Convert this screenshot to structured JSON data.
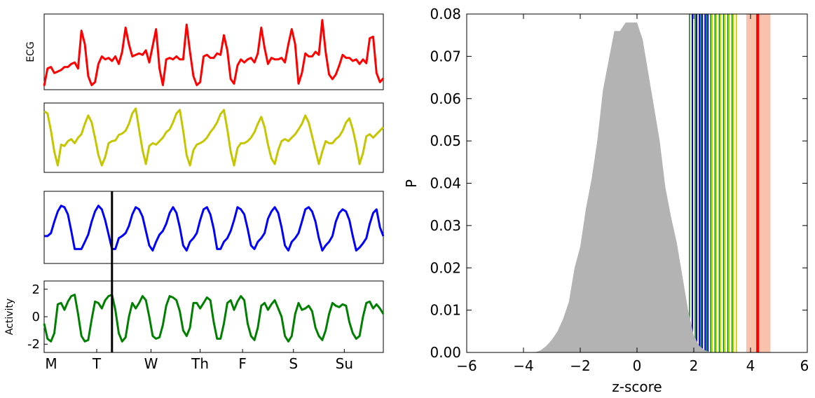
{
  "chart_data": [
    {
      "type": "line",
      "panel": "ecg",
      "ylabel": "ECG",
      "color": "#ff0000",
      "x": [
        0,
        0.01,
        0.02,
        0.03,
        0.04,
        0.05,
        0.06,
        0.07,
        0.08,
        0.09,
        0.1,
        0.11,
        0.12,
        0.13,
        0.14,
        0.15,
        0.16,
        0.17,
        0.18,
        0.19,
        0.2,
        0.21,
        0.22,
        0.23,
        0.24,
        0.25,
        0.26,
        0.27,
        0.28,
        0.29,
        0.3,
        0.31,
        0.32,
        0.33,
        0.34,
        0.35,
        0.36,
        0.37,
        0.38,
        0.39,
        0.4,
        0.41,
        0.42,
        0.43,
        0.44,
        0.45,
        0.46,
        0.47,
        0.48,
        0.49,
        0.5,
        0.51,
        0.52,
        0.53,
        0.54,
        0.55,
        0.56,
        0.57,
        0.58,
        0.59,
        0.6,
        0.61,
        0.62,
        0.63,
        0.64,
        0.65,
        0.66,
        0.67,
        0.68,
        0.69,
        0.7,
        0.71,
        0.72,
        0.73,
        0.74,
        0.75,
        0.76,
        0.77,
        0.78,
        0.79,
        0.8,
        0.81,
        0.82,
        0.83,
        0.84,
        0.85,
        0.86,
        0.87,
        0.88,
        0.89,
        0.9,
        0.91,
        0.92,
        0.93,
        0.94,
        0.95,
        0.96,
        0.97,
        0.98,
        0.99,
        1
      ],
      "y": [
        0.05,
        0.28,
        0.3,
        0.22,
        0.24,
        0.26,
        0.3,
        0.3,
        0.34,
        0.36,
        0.28,
        0.78,
        0.6,
        0.18,
        0.06,
        0.1,
        0.34,
        0.44,
        0.4,
        0.42,
        0.38,
        0.44,
        0.34,
        0.5,
        0.82,
        0.6,
        0.44,
        0.46,
        0.48,
        0.46,
        0.52,
        0.36,
        0.58,
        0.8,
        0.28,
        0.06,
        0.4,
        0.42,
        0.4,
        0.44,
        0.4,
        0.4,
        0.86,
        0.5,
        0.18,
        0.06,
        0.1,
        0.44,
        0.46,
        0.42,
        0.42,
        0.48,
        0.46,
        0.72,
        0.52,
        0.14,
        0.08,
        0.32,
        0.4,
        0.36,
        0.4,
        0.42,
        0.36,
        0.48,
        0.82,
        0.55,
        0.34,
        0.42,
        0.4,
        0.4,
        0.42,
        0.36,
        0.6,
        0.8,
        0.6,
        0.08,
        0.22,
        0.48,
        0.44,
        0.44,
        0.5,
        0.46,
        0.92,
        0.5,
        0.2,
        0.14,
        0.2,
        0.32,
        0.46,
        0.42,
        0.42,
        0.38,
        0.4,
        0.34,
        0.4,
        0.35,
        0.68,
        0.7,
        0.22,
        0.1,
        0.15
      ]
    },
    {
      "type": "line",
      "panel": "yellow",
      "color": "#c6c600",
      "x": [
        0,
        0.01,
        0.02,
        0.03,
        0.04,
        0.05,
        0.06,
        0.07,
        0.08,
        0.09,
        0.1,
        0.11,
        0.12,
        0.13,
        0.14,
        0.15,
        0.16,
        0.17,
        0.18,
        0.19,
        0.2,
        0.21,
        0.22,
        0.23,
        0.24,
        0.25,
        0.26,
        0.27,
        0.28,
        0.29,
        0.3,
        0.31,
        0.32,
        0.33,
        0.34,
        0.35,
        0.36,
        0.37,
        0.38,
        0.39,
        0.4,
        0.41,
        0.42,
        0.43,
        0.44,
        0.45,
        0.46,
        0.47,
        0.48,
        0.49,
        0.5,
        0.51,
        0.52,
        0.53,
        0.54,
        0.55,
        0.56,
        0.57,
        0.58,
        0.59,
        0.6,
        0.61,
        0.62,
        0.63,
        0.64,
        0.65,
        0.66,
        0.67,
        0.68,
        0.69,
        0.7,
        0.71,
        0.72,
        0.73,
        0.74,
        0.75,
        0.76,
        0.77,
        0.78,
        0.79,
        0.8,
        0.81,
        0.82,
        0.83,
        0.84,
        0.85,
        0.86,
        0.87,
        0.88,
        0.89,
        0.9,
        0.91,
        0.92,
        0.93,
        0.94,
        0.95,
        0.96,
        0.97,
        0.98,
        0.99,
        1
      ],
      "y": [
        0.88,
        0.85,
        0.6,
        0.3,
        0.1,
        0.4,
        0.38,
        0.45,
        0.48,
        0.42,
        0.5,
        0.55,
        0.7,
        0.82,
        0.72,
        0.5,
        0.25,
        0.1,
        0.22,
        0.42,
        0.45,
        0.46,
        0.54,
        0.56,
        0.6,
        0.7,
        0.85,
        0.92,
        0.62,
        0.32,
        0.12,
        0.38,
        0.42,
        0.4,
        0.45,
        0.5,
        0.58,
        0.62,
        0.72,
        0.85,
        0.9,
        0.6,
        0.25,
        0.1,
        0.32,
        0.4,
        0.42,
        0.45,
        0.5,
        0.58,
        0.64,
        0.72,
        0.84,
        0.9,
        0.62,
        0.3,
        0.1,
        0.35,
        0.42,
        0.42,
        0.45,
        0.5,
        0.58,
        0.7,
        0.8,
        0.65,
        0.4,
        0.2,
        0.12,
        0.32,
        0.45,
        0.48,
        0.45,
        0.5,
        0.55,
        0.62,
        0.7,
        0.82,
        0.72,
        0.52,
        0.32,
        0.12,
        0.3,
        0.45,
        0.42,
        0.42,
        0.48,
        0.52,
        0.6,
        0.72,
        0.78,
        0.62,
        0.4,
        0.12,
        0.28,
        0.52,
        0.55,
        0.5,
        0.55,
        0.6,
        0.65
      ]
    },
    {
      "type": "line",
      "panel": "blue",
      "color": "#0000ff",
      "x": [
        0,
        0.01,
        0.02,
        0.03,
        0.04,
        0.05,
        0.06,
        0.07,
        0.08,
        0.09,
        0.1,
        0.11,
        0.12,
        0.13,
        0.14,
        0.15,
        0.16,
        0.17,
        0.18,
        0.19,
        0.2,
        0.21,
        0.22,
        0.23,
        0.24,
        0.25,
        0.26,
        0.27,
        0.28,
        0.29,
        0.3,
        0.31,
        0.32,
        0.33,
        0.34,
        0.35,
        0.36,
        0.37,
        0.38,
        0.39,
        0.4,
        0.41,
        0.42,
        0.43,
        0.44,
        0.45,
        0.46,
        0.47,
        0.48,
        0.49,
        0.5,
        0.51,
        0.52,
        0.53,
        0.54,
        0.55,
        0.56,
        0.57,
        0.58,
        0.59,
        0.6,
        0.61,
        0.62,
        0.63,
        0.64,
        0.65,
        0.66,
        0.67,
        0.68,
        0.69,
        0.7,
        0.71,
        0.72,
        0.73,
        0.74,
        0.75,
        0.76,
        0.77,
        0.78,
        0.79,
        0.8,
        0.81,
        0.82,
        0.83,
        0.84,
        0.85,
        0.86,
        0.87,
        0.88,
        0.89,
        0.9,
        0.91,
        0.92,
        0.93,
        0.94,
        0.95,
        0.96,
        0.97,
        0.98,
        0.99,
        1
      ],
      "y": [
        0.38,
        0.38,
        0.42,
        0.58,
        0.72,
        0.8,
        0.78,
        0.68,
        0.45,
        0.2,
        0.2,
        0.2,
        0.3,
        0.4,
        0.58,
        0.72,
        0.8,
        0.75,
        0.6,
        0.4,
        0.2,
        0.2,
        0.35,
        0.38,
        0.42,
        0.52,
        0.68,
        0.78,
        0.75,
        0.65,
        0.45,
        0.25,
        0.18,
        0.3,
        0.4,
        0.45,
        0.55,
        0.7,
        0.78,
        0.7,
        0.5,
        0.25,
        0.18,
        0.3,
        0.35,
        0.42,
        0.6,
        0.75,
        0.78,
        0.68,
        0.48,
        0.2,
        0.2,
        0.3,
        0.35,
        0.45,
        0.6,
        0.78,
        0.75,
        0.68,
        0.48,
        0.25,
        0.2,
        0.3,
        0.35,
        0.42,
        0.62,
        0.72,
        0.78,
        0.7,
        0.5,
        0.25,
        0.18,
        0.3,
        0.35,
        0.42,
        0.58,
        0.75,
        0.78,
        0.72,
        0.58,
        0.35,
        0.18,
        0.25,
        0.3,
        0.38,
        0.58,
        0.7,
        0.75,
        0.72,
        0.6,
        0.38,
        0.18,
        0.22,
        0.28,
        0.35,
        0.55,
        0.7,
        0.75,
        0.5,
        0.38
      ]
    },
    {
      "type": "line",
      "panel": "activity",
      "ylabel": "Activity",
      "color": "#008000",
      "ylim": [
        -2.6,
        2.6
      ],
      "yticks": [
        "2",
        "0",
        "-2"
      ],
      "yticks_values": [
        2,
        0,
        -2
      ],
      "xtick_labels": [
        "M",
        "T",
        "W",
        "Th",
        "F",
        "S",
        "Su"
      ],
      "xtick_positions": [
        0,
        0.155,
        0.315,
        0.46,
        0.585,
        0.735,
        0.885
      ],
      "vline_x": 0.2,
      "x": [
        0,
        0.01,
        0.02,
        0.03,
        0.04,
        0.05,
        0.06,
        0.07,
        0.08,
        0.09,
        0.1,
        0.11,
        0.12,
        0.13,
        0.14,
        0.15,
        0.16,
        0.17,
        0.18,
        0.19,
        0.2,
        0.21,
        0.22,
        0.23,
        0.24,
        0.25,
        0.26,
        0.27,
        0.28,
        0.29,
        0.3,
        0.31,
        0.32,
        0.33,
        0.34,
        0.35,
        0.36,
        0.37,
        0.38,
        0.39,
        0.4,
        0.41,
        0.42,
        0.43,
        0.44,
        0.45,
        0.46,
        0.47,
        0.48,
        0.49,
        0.5,
        0.51,
        0.52,
        0.53,
        0.54,
        0.55,
        0.56,
        0.57,
        0.58,
        0.59,
        0.6,
        0.61,
        0.62,
        0.63,
        0.64,
        0.65,
        0.66,
        0.67,
        0.68,
        0.69,
        0.7,
        0.71,
        0.72,
        0.73,
        0.74,
        0.75,
        0.76,
        0.77,
        0.78,
        0.79,
        0.8,
        0.81,
        0.82,
        0.83,
        0.84,
        0.85,
        0.86,
        0.87,
        0.88,
        0.89,
        0.9,
        0.91,
        0.92,
        0.93,
        0.94,
        0.95,
        0.96,
        0.97,
        0.98,
        0.99,
        1
      ],
      "y": [
        -0.5,
        -1.6,
        -1.8,
        -1.2,
        0.9,
        1.0,
        0.5,
        1.1,
        1.5,
        1.6,
        0.2,
        -1.4,
        -1.8,
        -1.7,
        -0.2,
        1.1,
        1.0,
        0.6,
        1.2,
        1.5,
        1.6,
        0.5,
        -1.2,
        -1.8,
        -1.5,
        0.0,
        1.0,
        0.6,
        1.0,
        1.5,
        1.2,
        0.0,
        -1.4,
        -1.6,
        -1.5,
        -0.6,
        0.8,
        1.5,
        1.4,
        1.2,
        0.4,
        -1.0,
        -1.4,
        -0.8,
        1.0,
        1.0,
        0.6,
        1.0,
        1.4,
        1.2,
        -0.4,
        -1.6,
        -1.6,
        -0.5,
        1.0,
        1.2,
        0.5,
        1.1,
        1.5,
        1.2,
        -0.5,
        -1.4,
        -1.7,
        -0.8,
        0.8,
        1.0,
        0.5,
        0.9,
        1.2,
        0.6,
        0.0,
        -1.4,
        -1.8,
        -1.4,
        0.2,
        1.0,
        0.5,
        0.6,
        0.8,
        0.4,
        -0.8,
        -1.4,
        -1.7,
        -1.0,
        0.2,
        1.0,
        0.8,
        0.7,
        0.9,
        0.8,
        -0.4,
        -1.2,
        -1.6,
        -1.4,
        0.0,
        1.0,
        1.1,
        0.6,
        0.9,
        0.6,
        0.2
      ]
    },
    {
      "type": "area",
      "panel": "distribution",
      "xlabel": "z-score",
      "ylabel": "P",
      "xlim": [
        -6,
        6
      ],
      "ylim": [
        0,
        0.08
      ],
      "xticks": [
        "−6",
        "−4",
        "−2",
        "0",
        "2",
        "4",
        "6"
      ],
      "xticks_values": [
        -6,
        -4,
        -2,
        0,
        2,
        4,
        6
      ],
      "yticks": [
        "0.00",
        "0.01",
        "0.02",
        "0.03",
        "0.04",
        "0.05",
        "0.06",
        "0.07",
        "0.08"
      ],
      "yticks_values": [
        0,
        0.01,
        0.02,
        0.03,
        0.04,
        0.05,
        0.06,
        0.07,
        0.08
      ],
      "fill_color": "#b3b3b3",
      "x": [
        -5,
        -3.6,
        -3.4,
        -3.2,
        -3.0,
        -2.8,
        -2.6,
        -2.4,
        -2.2,
        -2.0,
        -1.8,
        -1.6,
        -1.4,
        -1.2,
        -1.0,
        -0.8,
        -0.6,
        -0.4,
        -0.2,
        0.0,
        0.2,
        0.4,
        0.6,
        0.8,
        1.0,
        1.2,
        1.4,
        1.6,
        1.8,
        2.0,
        2.2,
        2.4,
        2.6
      ],
      "y": [
        0,
        0,
        0.0005,
        0.0015,
        0.003,
        0.005,
        0.008,
        0.012,
        0.02,
        0.025,
        0.034,
        0.041,
        0.05,
        0.062,
        0.069,
        0.076,
        0.076,
        0.078,
        0.078,
        0.078,
        0.074,
        0.066,
        0.058,
        0.05,
        0.039,
        0.032,
        0.026,
        0.018,
        0.01,
        0.004,
        0.0015,
        0.0005,
        0
      ],
      "vlines_green": [
        1.85,
        2.05,
        2.25,
        2.45,
        2.6,
        2.75,
        2.9,
        3.05,
        3.2,
        3.35
      ],
      "vlines_blue": [
        1.95,
        2.1,
        2.2,
        2.3,
        2.4,
        2.5
      ],
      "vlines_yellow": [
        2.65,
        2.8,
        2.95,
        3.1,
        3.25,
        3.4,
        3.5
      ],
      "vband_salmon": [
        3.85,
        4.7
      ],
      "vline_red": 4.25,
      "colors": {
        "green": "#008000",
        "blue": "#0000ff",
        "yellow": "#c6c600",
        "salmon": "#f9c2ac",
        "red": "#ff0000"
      }
    }
  ]
}
